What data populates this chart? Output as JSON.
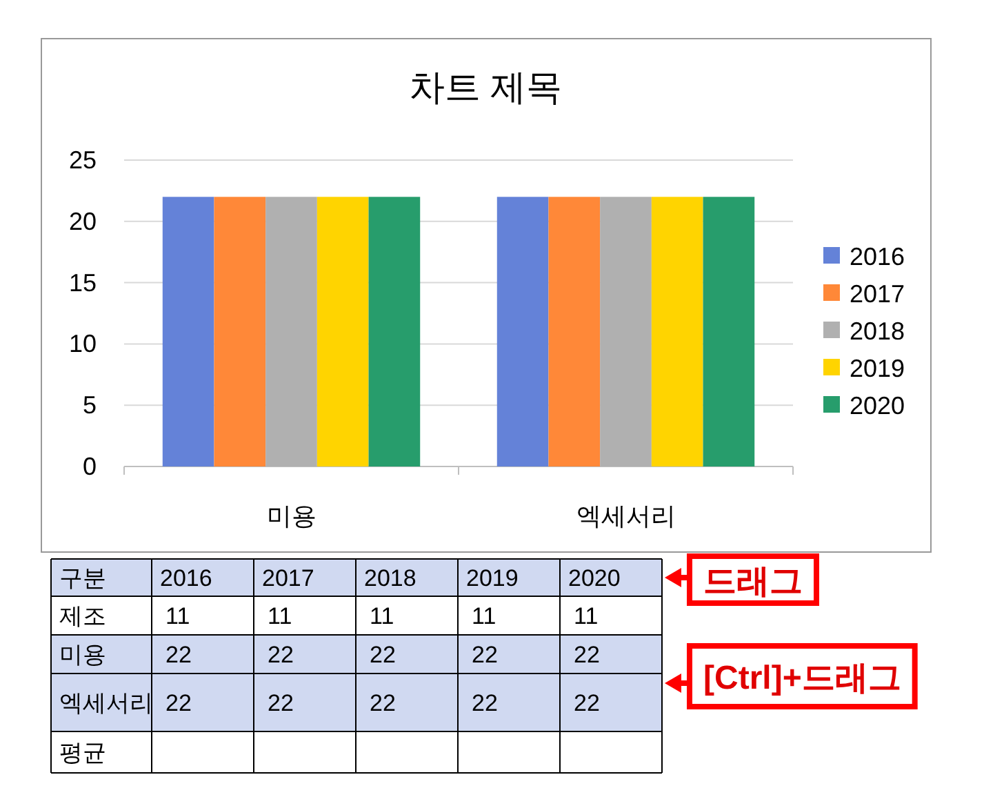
{
  "chart_data": [
    {
      "type": "bar",
      "title": "차트 제목",
      "categories": [
        "미용",
        "엑세서리"
      ],
      "series": [
        {
          "name": "2016",
          "color": "#6482d8",
          "values": [
            22,
            22
          ]
        },
        {
          "name": "2017",
          "color": "#ff8838",
          "values": [
            22,
            22
          ]
        },
        {
          "name": "2018",
          "color": "#b0b0b0",
          "values": [
            22,
            22
          ]
        },
        {
          "name": "2019",
          "color": "#ffd400",
          "values": [
            22,
            22
          ]
        },
        {
          "name": "2020",
          "color": "#279d6c",
          "values": [
            22,
            22
          ]
        }
      ],
      "ylim": [
        0,
        25
      ],
      "yticks": [
        0,
        5,
        10,
        15,
        20,
        25
      ],
      "grid": "y",
      "legend": "right"
    },
    {
      "type": "heatmap",
      "title": "구분",
      "categories": [
        "2016",
        "2017",
        "2018",
        "2019",
        "2020"
      ],
      "y_categories": [
        "제조",
        "미용",
        "엑세서리",
        "평균"
      ],
      "cells": [
        [
          11,
          11,
          11,
          11,
          11
        ],
        [
          22,
          22,
          22,
          22,
          22
        ],
        [
          22,
          22,
          22,
          22,
          22
        ],
        [
          null,
          null,
          null,
          null,
          null
        ]
      ],
      "data_labels": true,
      "annotations": [
        "드래그",
        "[Ctrl]+드래그"
      ]
    }
  ]
}
